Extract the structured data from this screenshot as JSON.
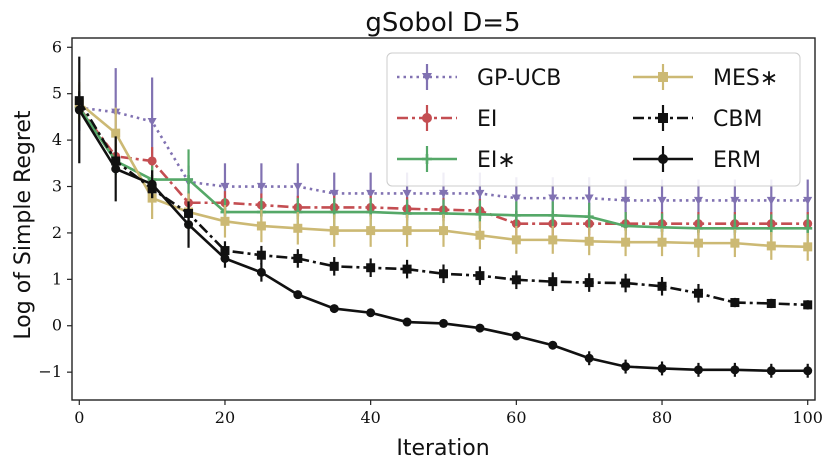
{
  "chart_data": {
    "type": "line",
    "title": "gSobol D=5",
    "xlabel": "Iteration",
    "ylabel": "Log of Simple Regret",
    "xlim": [
      -1,
      101
    ],
    "ylim": [
      -1.6,
      6.2
    ],
    "xticks": [
      0,
      20,
      40,
      60,
      80,
      100
    ],
    "xtick_labels": [
      "0",
      "20",
      "40",
      "60",
      "80",
      "100"
    ],
    "yticks": [
      -1,
      0,
      1,
      2,
      3,
      4,
      5,
      6
    ],
    "ytick_labels": [
      "−1",
      "0",
      "1",
      "2",
      "3",
      "4",
      "5",
      "6"
    ],
    "legend": "top-right",
    "series": [
      {
        "name": "GP-UCB",
        "color": "#8172b2",
        "style": "dotted",
        "marker": "triangle-down",
        "x": [
          0,
          5,
          10,
          15,
          20,
          25,
          30,
          35,
          40,
          45,
          50,
          55,
          60,
          65,
          70,
          75,
          80,
          85,
          90,
          95,
          100
        ],
        "y": [
          4.7,
          4.6,
          4.4,
          3.1,
          3.0,
          3.0,
          3.0,
          2.85,
          2.85,
          2.85,
          2.85,
          2.85,
          2.75,
          2.75,
          2.75,
          2.7,
          2.7,
          2.7,
          2.7,
          2.7,
          2.7
        ],
        "err": [
          0.5,
          0.95,
          0.95,
          0.35,
          0.5,
          0.5,
          0.5,
          0.45,
          0.45,
          0.45,
          0.45,
          0.45,
          0.45,
          0.45,
          0.45,
          0.45,
          0.45,
          0.45,
          0.45,
          0.45,
          0.45
        ]
      },
      {
        "name": "EI",
        "color": "#c44e52",
        "style": "dashdot",
        "marker": "circle",
        "x": [
          0,
          5,
          10,
          15,
          20,
          25,
          30,
          35,
          40,
          45,
          50,
          55,
          60,
          65,
          70,
          75,
          80,
          85,
          90,
          95,
          100
        ],
        "y": [
          4.7,
          3.65,
          3.55,
          2.65,
          2.65,
          2.6,
          2.55,
          2.55,
          2.55,
          2.52,
          2.5,
          2.48,
          2.2,
          2.2,
          2.2,
          2.2,
          2.2,
          2.2,
          2.2,
          2.2,
          2.2
        ],
        "err": [
          0.3,
          0.3,
          0.3,
          0.25,
          0.25,
          0.25,
          0.25,
          0.25,
          0.25,
          0.25,
          0.25,
          0.25,
          0.25,
          0.25,
          0.25,
          0.25,
          0.25,
          0.25,
          0.25,
          0.25,
          0.25
        ]
      },
      {
        "name": "EI∗",
        "color": "#55a868",
        "style": "solid",
        "marker": "plus",
        "x": [
          0,
          5,
          10,
          15,
          20,
          25,
          30,
          35,
          40,
          45,
          50,
          55,
          60,
          65,
          70,
          75,
          80,
          85,
          90,
          95,
          100
        ],
        "y": [
          4.7,
          3.55,
          3.15,
          3.15,
          2.45,
          2.45,
          2.45,
          2.45,
          2.45,
          2.42,
          2.42,
          2.4,
          2.38,
          2.38,
          2.35,
          2.15,
          2.12,
          2.1,
          2.1,
          2.1,
          2.1
        ],
        "err": [
          0.3,
          0.3,
          0.3,
          0.65,
          0.3,
          0.3,
          0.3,
          0.3,
          0.3,
          0.3,
          0.3,
          0.3,
          0.3,
          0.3,
          0.3,
          0.3,
          0.3,
          0.3,
          0.3,
          0.3,
          0.3
        ]
      },
      {
        "name": "MES∗",
        "color": "#ccb974",
        "style": "solid",
        "marker": "square",
        "x": [
          0,
          5,
          10,
          15,
          20,
          25,
          30,
          35,
          40,
          45,
          50,
          55,
          60,
          65,
          70,
          75,
          80,
          85,
          90,
          95,
          100
        ],
        "y": [
          4.8,
          4.15,
          2.75,
          2.45,
          2.25,
          2.15,
          2.1,
          2.05,
          2.05,
          2.05,
          2.05,
          1.95,
          1.85,
          1.85,
          1.82,
          1.8,
          1.8,
          1.78,
          1.78,
          1.72,
          1.7
        ],
        "err": [
          0.45,
          0.55,
          0.45,
          0.4,
          0.35,
          0.35,
          0.35,
          0.35,
          0.35,
          0.35,
          0.35,
          0.3,
          0.3,
          0.3,
          0.3,
          0.3,
          0.3,
          0.3,
          0.3,
          0.3,
          0.3
        ]
      },
      {
        "name": "CBM",
        "color": "#111111",
        "style": "dashdot",
        "marker": "square",
        "x": [
          0,
          5,
          10,
          15,
          20,
          25,
          30,
          35,
          40,
          45,
          50,
          55,
          60,
          65,
          70,
          75,
          80,
          85,
          90,
          95,
          100
        ],
        "y": [
          4.85,
          3.55,
          2.95,
          2.42,
          1.62,
          1.52,
          1.45,
          1.28,
          1.25,
          1.22,
          1.12,
          1.08,
          0.99,
          0.95,
          0.93,
          0.92,
          0.85,
          0.7,
          0.5,
          0.48,
          0.45
        ],
        "err": [
          0.2,
          0.2,
          0.2,
          0.2,
          0.2,
          0.2,
          0.2,
          0.2,
          0.2,
          0.2,
          0.2,
          0.2,
          0.2,
          0.2,
          0.2,
          0.2,
          0.2,
          0.2,
          0.1,
          0.1,
          0.1
        ]
      },
      {
        "name": "ERM",
        "color": "#111111",
        "style": "solid",
        "marker": "circle",
        "x": [
          0,
          5,
          10,
          15,
          20,
          25,
          30,
          35,
          40,
          45,
          50,
          55,
          60,
          65,
          70,
          75,
          80,
          85,
          90,
          95,
          100
        ],
        "y": [
          4.65,
          3.38,
          3.05,
          2.18,
          1.45,
          1.15,
          0.67,
          0.37,
          0.28,
          0.08,
          0.05,
          -0.05,
          -0.22,
          -0.42,
          -0.7,
          -0.88,
          -0.92,
          -0.95,
          -0.95,
          -0.97,
          -0.97
        ],
        "err": [
          1.15,
          0.7,
          0.3,
          0.5,
          0.2,
          0.2,
          0.05,
          0.05,
          0.05,
          0.05,
          0.05,
          0.05,
          0.05,
          0.05,
          0.15,
          0.15,
          0.15,
          0.15,
          0.15,
          0.15,
          0.15
        ]
      }
    ]
  }
}
